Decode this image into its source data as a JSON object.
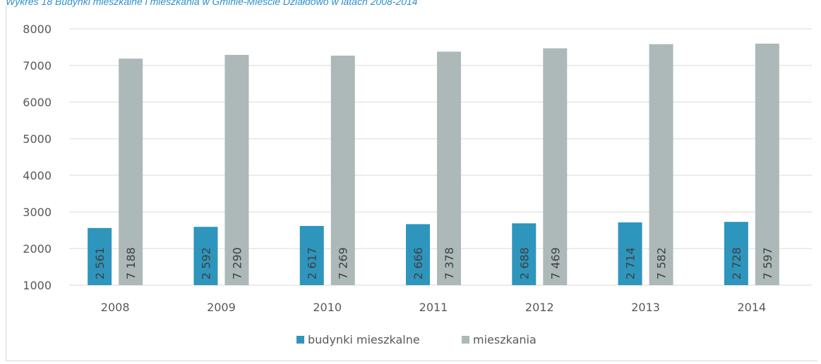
{
  "caption": "Wykres 18 Budynki mieszkalne i mieszkania w Gminie-Mieście Działdowo w latach 2008-2014",
  "colors": {
    "budynki": "#2e95bd",
    "mieszkania": "#acb9b8",
    "grid": "#d9d9d9"
  },
  "chart_data": {
    "type": "bar",
    "categories": [
      "2008",
      "2009",
      "2010",
      "2011",
      "2012",
      "2013",
      "2014"
    ],
    "series": [
      {
        "name": "budynki mieszkalne",
        "values": [
          2561,
          2592,
          2617,
          2666,
          2688,
          2714,
          2728
        ],
        "labels": [
          "2 561",
          "2 592",
          "2 617",
          "2 666",
          "2 688",
          "2 714",
          "2 728"
        ]
      },
      {
        "name": "mieszkania",
        "values": [
          7188,
          7290,
          7269,
          7378,
          7469,
          7582,
          7597
        ],
        "labels": [
          "7 188",
          "7 290",
          "7 269",
          "7 378",
          "7 469",
          "7 582",
          "7 597"
        ]
      }
    ],
    "ylim": [
      1000,
      8000
    ],
    "yticks": [
      1000,
      2000,
      3000,
      4000,
      5000,
      6000,
      7000,
      8000
    ],
    "grid": true,
    "legend": "bottom"
  }
}
